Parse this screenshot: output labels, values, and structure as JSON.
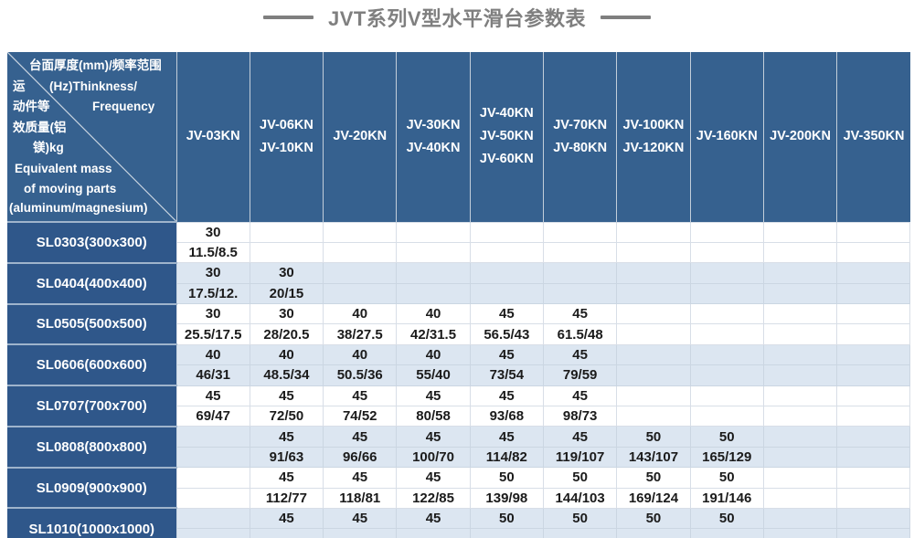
{
  "title": {
    "text": "JVT系列V型水平滑台参数表"
  },
  "corner": {
    "l1": "台面厚度(mm)/频率范围",
    "l2a": "运",
    "l2b": "(Hz)Thinkness/",
    "l3a": "动件等",
    "l3b": "Frequency",
    "l4": "效质量(铝",
    "l5": "镁)kg",
    "l6": "Equivalent mass",
    "l7": "of moving parts",
    "l8": "(aluminum/magnesium)"
  },
  "table": {
    "columns": [
      {
        "lines": [
          "JV-03KN"
        ]
      },
      {
        "lines": [
          "JV-06KN",
          "JV-10KN"
        ]
      },
      {
        "lines": [
          "JV-20KN"
        ]
      },
      {
        "lines": [
          "JV-30KN",
          "JV-40KN"
        ]
      },
      {
        "lines": [
          "JV-40KN",
          "JV-50KN",
          "JV-60KN"
        ]
      },
      {
        "lines": [
          "JV-70KN",
          "JV-80KN"
        ]
      },
      {
        "lines": [
          "JV-100KN",
          "JV-120KN"
        ]
      },
      {
        "lines": [
          "JV-160KN"
        ]
      },
      {
        "lines": [
          "JV-200KN"
        ]
      },
      {
        "lines": [
          "JV-350KN"
        ]
      }
    ],
    "rows": [
      {
        "label": "SL0303(300x300)",
        "cells": [
          [
            "30",
            "11.5/8.5"
          ],
          [
            "",
            ""
          ],
          [
            "",
            ""
          ],
          [
            "",
            ""
          ],
          [
            "",
            ""
          ],
          [
            "",
            ""
          ],
          [
            "",
            ""
          ],
          [
            "",
            ""
          ],
          [
            "",
            ""
          ],
          [
            "",
            ""
          ]
        ]
      },
      {
        "label": "SL0404(400x400)",
        "cells": [
          [
            "30",
            "17.5/12."
          ],
          [
            "30",
            "20/15"
          ],
          [
            "",
            ""
          ],
          [
            "",
            ""
          ],
          [
            "",
            ""
          ],
          [
            "",
            ""
          ],
          [
            "",
            ""
          ],
          [
            "",
            ""
          ],
          [
            "",
            ""
          ],
          [
            "",
            ""
          ]
        ]
      },
      {
        "label": "SL0505(500x500)",
        "cells": [
          [
            "30",
            "25.5/17.5"
          ],
          [
            "30",
            "28/20.5"
          ],
          [
            "40",
            "38/27.5"
          ],
          [
            "40",
            "42/31.5"
          ],
          [
            "45",
            "56.5/43"
          ],
          [
            "45",
            "61.5/48"
          ],
          [
            "",
            ""
          ],
          [
            "",
            ""
          ],
          [
            "",
            ""
          ],
          [
            "",
            ""
          ]
        ]
      },
      {
        "label": "SL0606(600x600)",
        "cells": [
          [
            "40",
            "46/31"
          ],
          [
            "40",
            "48.5/34"
          ],
          [
            "40",
            "50.5/36"
          ],
          [
            "40",
            "55/40"
          ],
          [
            "45",
            "73/54"
          ],
          [
            "45",
            "79/59"
          ],
          [
            "",
            ""
          ],
          [
            "",
            ""
          ],
          [
            "",
            ""
          ],
          [
            "",
            ""
          ]
        ]
      },
      {
        "label": "SL0707(700x700)",
        "cells": [
          [
            "45",
            "69/47"
          ],
          [
            "45",
            "72/50"
          ],
          [
            "45",
            "74/52"
          ],
          [
            "45",
            "80/58"
          ],
          [
            "45",
            "93/68"
          ],
          [
            "45",
            "98/73"
          ],
          [
            "",
            ""
          ],
          [
            "",
            ""
          ],
          [
            "",
            ""
          ],
          [
            "",
            ""
          ]
        ]
      },
      {
        "label": "SL0808(800x800)",
        "cells": [
          [
            "",
            ""
          ],
          [
            "45",
            "91/63"
          ],
          [
            "45",
            "96/66"
          ],
          [
            "45",
            "100/70"
          ],
          [
            "45",
            "114/82"
          ],
          [
            "45",
            "119/107"
          ],
          [
            "50",
            "143/107"
          ],
          [
            "50",
            "165/129"
          ],
          [
            "",
            ""
          ],
          [
            "",
            ""
          ]
        ]
      },
      {
        "label": "SL0909(900x900)",
        "cells": [
          [
            "",
            ""
          ],
          [
            "45",
            "112/77"
          ],
          [
            "45",
            "118/81"
          ],
          [
            "45",
            "122/85"
          ],
          [
            "50",
            "139/98"
          ],
          [
            "50",
            "144/103"
          ],
          [
            "50",
            "169/124"
          ],
          [
            "50",
            "191/146"
          ],
          [
            "",
            ""
          ],
          [
            "",
            ""
          ]
        ]
      },
      {
        "label": "SL1010(1000x1000)",
        "cells": [
          [
            "",
            ""
          ],
          [
            "45",
            ""
          ],
          [
            "45",
            ""
          ],
          [
            "45",
            ""
          ],
          [
            "50",
            ""
          ],
          [
            "50",
            ""
          ],
          [
            "50",
            ""
          ],
          [
            "50",
            ""
          ],
          [
            "",
            ""
          ],
          [
            "",
            ""
          ]
        ]
      }
    ]
  },
  "colors": {
    "header-blue": "#36618F",
    "label-blue": "#2F578A",
    "alt-row": "#DCE6F1",
    "grid-line": "#D8DEE7",
    "grid-line-alt": "#CBD6E2",
    "header-sep": "#C3CEDA",
    "label-sep": "#9FB4CC",
    "diagonal-line": "#C9D4E0",
    "title-gray": "#7f7f7f",
    "data-text": "#1b1b1b"
  }
}
